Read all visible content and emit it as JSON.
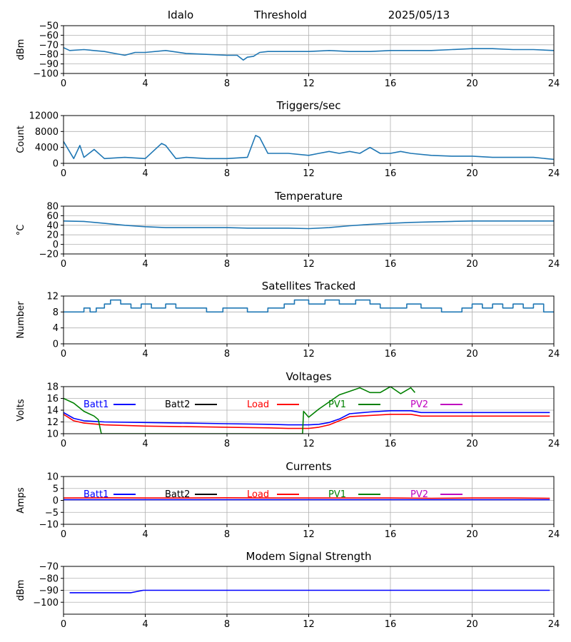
{
  "header": {
    "station": "Idalo",
    "label": "Threshold",
    "date": "2025/05/13"
  },
  "chart_data": [
    {
      "type": "line",
      "title": "",
      "ylabel": "dBm",
      "ylim": [
        -100,
        -50
      ],
      "yticks": [
        -100,
        -90,
        -80,
        -70,
        -60,
        -50
      ],
      "xlim": [
        0,
        24
      ],
      "xticks": [
        0,
        4,
        8,
        12,
        16,
        20,
        24
      ],
      "grid": true,
      "series": [
        {
          "color": "#1f77b4",
          "x": [
            0,
            0.3,
            1,
            2,
            2.5,
            3,
            3.5,
            4,
            5,
            6,
            7,
            8,
            8.5,
            8.8,
            9,
            9.3,
            9.6,
            10,
            11,
            12,
            13,
            14,
            15,
            16,
            17,
            18,
            19,
            20,
            21,
            22,
            23,
            24
          ],
          "values": [
            -73,
            -76,
            -75,
            -77,
            -79,
            -81,
            -78,
            -78,
            -76,
            -79,
            -80,
            -81,
            -81,
            -86,
            -83,
            -82,
            -78,
            -77,
            -77,
            -77,
            -76,
            -77,
            -77,
            -76,
            -76,
            -76,
            -75,
            -74,
            -74,
            -75,
            -75,
            -76
          ]
        }
      ]
    },
    {
      "type": "line",
      "title": "Triggers/sec",
      "ylabel": "Count",
      "ylim": [
        0,
        12000
      ],
      "yticks": [
        0,
        4000,
        8000,
        12000
      ],
      "xlim": [
        0,
        24
      ],
      "xticks": [
        0,
        4,
        8,
        12,
        16,
        20,
        24
      ],
      "grid": true,
      "series": [
        {
          "color": "#1f77b4",
          "x": [
            0,
            0.5,
            0.8,
            1,
            1.5,
            2,
            3,
            4,
            4.8,
            5,
            5.5,
            6,
            7,
            8,
            9,
            9.4,
            9.6,
            10,
            11,
            12,
            12.5,
            13,
            13.5,
            14,
            14.5,
            15,
            15.5,
            16,
            16.5,
            17,
            18,
            19,
            20,
            21,
            22,
            23,
            24
          ],
          "values": [
            5500,
            1200,
            4500,
            1500,
            3500,
            1200,
            1500,
            1200,
            5000,
            4500,
            1200,
            1500,
            1200,
            1200,
            1500,
            7000,
            6500,
            2500,
            2500,
            2000,
            2500,
            3000,
            2500,
            3000,
            2500,
            4000,
            2500,
            2500,
            3000,
            2500,
            2000,
            1800,
            1800,
            1500,
            1500,
            1500,
            1000
          ]
        }
      ]
    },
    {
      "type": "line",
      "title": "Temperature",
      "ylabel": "°C",
      "ylim": [
        -20,
        80
      ],
      "yticks": [
        -20,
        0,
        20,
        40,
        60,
        80
      ],
      "xlim": [
        0,
        24
      ],
      "xticks": [
        0,
        4,
        8,
        12,
        16,
        20,
        24
      ],
      "grid": true,
      "series": [
        {
          "color": "#1f77b4",
          "x": [
            0,
            1,
            2,
            3,
            4,
            5,
            6,
            7,
            8,
            9,
            10,
            11,
            12,
            13,
            14,
            15,
            16,
            17,
            18,
            19,
            20,
            21,
            22,
            23,
            24
          ],
          "values": [
            49,
            48,
            44,
            40,
            37,
            35,
            35,
            35,
            35,
            34,
            34,
            34,
            33,
            35,
            39,
            42,
            44,
            46,
            47,
            48,
            49,
            49,
            49,
            49,
            49
          ]
        }
      ]
    },
    {
      "type": "line",
      "title": "Satellites Tracked",
      "ylabel": "Number",
      "ylim": [
        0,
        12
      ],
      "yticks": [
        0,
        4,
        8,
        12
      ],
      "xlim": [
        0,
        24
      ],
      "xticks": [
        0,
        4,
        8,
        12,
        16,
        20,
        24
      ],
      "grid": true,
      "series": [
        {
          "color": "#1f77b4",
          "step": true,
          "x": [
            0,
            0.5,
            1,
            1.3,
            1.6,
            2,
            2.3,
            2.8,
            3.3,
            3.8,
            4.3,
            5,
            5.5,
            6,
            7,
            7.8,
            8.5,
            9,
            10,
            10.8,
            11.3,
            12,
            12.8,
            13.5,
            14.3,
            15,
            15.5,
            16,
            16.8,
            17.5,
            18,
            18.5,
            19,
            19.5,
            20,
            20.5,
            21,
            21.5,
            22,
            22.5,
            23,
            23.5,
            24
          ],
          "values": [
            8,
            8,
            9,
            8,
            9,
            10,
            11,
            10,
            9,
            10,
            9,
            10,
            9,
            9,
            8,
            9,
            9,
            8,
            9,
            10,
            11,
            10,
            11,
            10,
            11,
            10,
            9,
            9,
            10,
            9,
            9,
            8,
            8,
            9,
            10,
            9,
            10,
            9,
            10,
            9,
            10,
            8,
            8
          ]
        }
      ]
    },
    {
      "type": "line",
      "title": "Voltages",
      "ylabel": "Volts",
      "ylim": [
        10,
        18
      ],
      "yticks": [
        10,
        12,
        14,
        16,
        18
      ],
      "xlim": [
        0,
        24
      ],
      "xticks": [
        0,
        4,
        8,
        12,
        16,
        20,
        24
      ],
      "grid": true,
      "legend": "top",
      "series": [
        {
          "name": "Batt1",
          "color": "#0000ff",
          "x": [
            0,
            0.5,
            1,
            2,
            4,
            6,
            8,
            10,
            11,
            12,
            12.5,
            13,
            13.5,
            14,
            15,
            16,
            17,
            17.5,
            18,
            20,
            22,
            23.8
          ],
          "values": [
            13.6,
            12.6,
            12.2,
            12.0,
            11.9,
            11.8,
            11.7,
            11.6,
            11.5,
            11.5,
            11.6,
            11.9,
            12.5,
            13.4,
            13.7,
            13.9,
            13.9,
            13.6,
            13.6,
            13.6,
            13.6,
            13.6
          ]
        },
        {
          "name": "Batt2",
          "color": "#000000",
          "x": [],
          "values": []
        },
        {
          "name": "Load",
          "color": "#ff0000",
          "x": [
            0,
            0.5,
            1,
            2,
            4,
            6,
            8,
            10,
            11,
            12,
            12.5,
            13,
            13.5,
            14,
            15,
            16,
            17,
            17.5,
            18,
            20,
            22,
            23.8
          ],
          "values": [
            13.3,
            12.2,
            11.8,
            11.5,
            11.3,
            11.2,
            11.1,
            11.0,
            10.9,
            10.9,
            11.1,
            11.5,
            12.2,
            12.9,
            13.1,
            13.3,
            13.3,
            13.0,
            13.0,
            13.0,
            13.0,
            13.0
          ]
        },
        {
          "name": "PV1",
          "color": "#008000",
          "x": [
            0,
            0.5,
            1,
            1.5,
            1.7,
            1.8,
            1.85,
            11.7,
            11.75,
            12,
            12.5,
            13,
            13.5,
            14,
            14.5,
            15,
            15.5,
            16,
            16.5,
            17,
            17.2
          ],
          "values": [
            16.0,
            15.2,
            13.8,
            13.0,
            12.4,
            10.8,
            10.0,
            10.0,
            13.8,
            12.8,
            14.2,
            15.4,
            16.6,
            17.2,
            17.8,
            17.0,
            17.0,
            18.0,
            16.8,
            17.8,
            17.0
          ]
        },
        {
          "name": "PV2",
          "color": "#bf00bf",
          "x": [],
          "values": []
        }
      ]
    },
    {
      "type": "line",
      "title": "Currents",
      "ylabel": "Amps",
      "ylim": [
        -10,
        10
      ],
      "yticks": [
        -10,
        -5,
        0,
        5,
        10
      ],
      "xlim": [
        0,
        24
      ],
      "xticks": [
        0,
        4,
        8,
        12,
        16,
        20,
        24
      ],
      "grid": true,
      "legend": "top",
      "series": [
        {
          "name": "Batt1",
          "color": "#0000ff",
          "x": [
            0,
            4,
            8,
            12,
            16,
            20,
            23.8
          ],
          "values": [
            0.3,
            0.3,
            0.3,
            0.3,
            0.3,
            0.3,
            0.3
          ]
        },
        {
          "name": "Batt2",
          "color": "#000000",
          "x": [],
          "values": []
        },
        {
          "name": "Load",
          "color": "#ff0000",
          "x": [
            0,
            2,
            4,
            6,
            8,
            10,
            12,
            14,
            16,
            18,
            20,
            22,
            23.8
          ],
          "values": [
            1.0,
            1.1,
            1.0,
            1.0,
            1.1,
            1.0,
            1.0,
            1.0,
            1.0,
            0.9,
            1.0,
            1.0,
            0.9
          ]
        },
        {
          "name": "PV1",
          "color": "#008000",
          "x": [],
          "values": []
        },
        {
          "name": "PV2",
          "color": "#bf00bf",
          "x": [],
          "values": []
        }
      ]
    },
    {
      "type": "line",
      "title": "Modem Signal Strength",
      "ylabel": "dBm",
      "ylim": [
        -110,
        -70
      ],
      "yticks": [
        -100,
        -90,
        -80,
        -70
      ],
      "xlim": [
        0,
        24
      ],
      "xticks": [
        0,
        4,
        8,
        12,
        16,
        20,
        24
      ],
      "grid": true,
      "series": [
        {
          "color": "#0000ff",
          "x": [
            0.3,
            3.3,
            3.9,
            4.2,
            8,
            12,
            16,
            20,
            23.8
          ],
          "values": [
            -92,
            -92,
            -90,
            -90,
            -90,
            -90,
            -90,
            -90,
            -90
          ]
        }
      ]
    }
  ]
}
